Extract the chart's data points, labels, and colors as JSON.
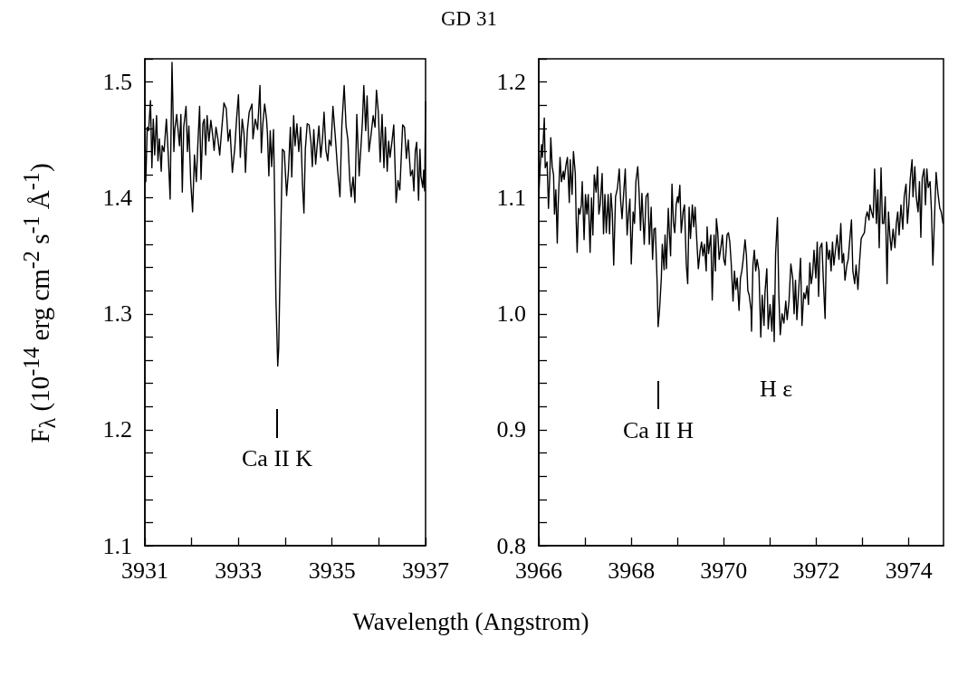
{
  "chart_data": [
    {
      "type": "line",
      "title": "GD 31",
      "xlabel": "Wavelength (Angstrom)",
      "ylabel": "F$_{λ}$ (10$^{-14}$ erg cm$^{-2}$ s$^{-1}$ Å$^{-1}$)",
      "marker": "none",
      "xlim": [
        3931,
        3937
      ],
      "xticks": [
        3931,
        {
          "value": 3932,
          "label": null
        },
        3933,
        {
          "value": 3934,
          "label": null
        },
        3935,
        {
          "value": 3936,
          "label": null
        },
        3937
      ],
      "ylim": [
        1.1,
        1.52
      ],
      "yticks": [
        1.1,
        {
          "value": 1.12,
          "label": null
        },
        {
          "value": 1.14,
          "label": null
        },
        {
          "value": 1.16,
          "label": null
        },
        {
          "value": 1.18,
          "label": null
        },
        1.2,
        {
          "value": 1.22,
          "label": null
        },
        {
          "value": 1.24,
          "label": null
        },
        {
          "value": 1.26,
          "label": null
        },
        {
          "value": 1.28,
          "label": null
        },
        1.3,
        {
          "value": 1.32,
          "label": null
        },
        {
          "value": 1.34,
          "label": null
        },
        {
          "value": 1.36,
          "label": null
        },
        {
          "value": 1.38,
          "label": null
        },
        1.4,
        {
          "value": 1.42,
          "label": null
        },
        {
          "value": 1.44,
          "label": null
        },
        {
          "value": 1.46,
          "label": null
        },
        {
          "value": 1.48,
          "label": null
        },
        1.5,
        {
          "value": 1.52,
          "label": null
        }
      ],
      "annotations": [
        "Ca II K"
      ],
      "series": [
        {
          "color": "#000000",
          "x": [
            3931.02,
            3931.05,
            3931.08,
            3931.12,
            3931.15,
            3931.18,
            3931.21,
            3931.25,
            3931.28,
            3931.31,
            3931.35,
            3931.37,
            3931.41,
            3931.46,
            3931.5,
            3931.54,
            3931.58,
            3931.62,
            3931.64,
            3931.68,
            3931.74,
            3931.77,
            3931.8,
            3931.83,
            3931.88,
            3931.91,
            3931.94,
            3931.98,
            3932.02,
            3932.06,
            3932.1,
            3932.13,
            3932.17,
            3932.2,
            3932.24,
            3932.27,
            3932.3,
            3932.33,
            3932.37,
            3932.41,
            3932.45,
            3932.48,
            3932.52,
            3932.56,
            3932.6,
            3932.63,
            3932.69,
            3932.74,
            3932.78,
            3932.82,
            3932.87,
            3932.92,
            3932.96,
            3933.0,
            3933.04,
            3933.08,
            3933.12,
            3933.15,
            3933.19,
            3933.23,
            3933.29,
            3933.31,
            3933.36,
            3933.41,
            3933.46,
            3933.49,
            3933.52,
            3933.56,
            3933.6,
            3933.62,
            3933.65,
            3933.68,
            3933.71,
            3933.75,
            3933.77,
            3933.8,
            3933.84,
            3933.86,
            3933.9,
            3933.94,
            3933.98,
            3934.03,
            3934.07,
            3934.11,
            3934.14,
            3934.18,
            3934.21,
            3934.25,
            3934.29,
            3934.33,
            3934.37,
            3934.4,
            3934.43,
            3934.47,
            3934.51,
            3934.55,
            3934.58,
            3934.61,
            3934.65,
            3934.68,
            3934.72,
            3934.76,
            3934.8,
            3934.83,
            3934.87,
            3934.91,
            3934.94,
            3934.98,
            3935.02,
            3935.07,
            3935.12,
            3935.17,
            3935.21,
            3935.26,
            3935.3,
            3935.34,
            3935.38,
            3935.41,
            3935.45,
            3935.49,
            3935.53,
            3935.58,
            3935.62,
            3935.65,
            3935.68,
            3935.72,
            3935.75,
            3935.79,
            3935.83,
            3935.88,
            3935.92,
            3935.95,
            3935.99,
            3936.03,
            3936.07,
            3936.11,
            3936.14,
            3936.18,
            3936.21,
            3936.24,
            3936.28,
            3936.32,
            3936.35,
            3936.37,
            3936.41,
            3936.45,
            3936.48,
            3936.51,
            3936.55,
            3936.59,
            3936.63,
            3936.68,
            3936.72,
            3936.75,
            3936.78,
            3936.81,
            3936.85,
            3936.88,
            3936.9,
            3936.94,
            3936.96,
            3936.98,
            3937.0
          ],
          "values": [
            1.414,
            1.461,
            1.458,
            1.484,
            1.426,
            1.468,
            1.437,
            1.471,
            1.432,
            1.451,
            1.423,
            1.445,
            1.44,
            1.468,
            1.437,
            1.399,
            1.517,
            1.44,
            1.459,
            1.472,
            1.445,
            1.472,
            1.405,
            1.461,
            1.479,
            1.44,
            1.462,
            1.414,
            1.388,
            1.437,
            1.414,
            1.444,
            1.479,
            1.416,
            1.464,
            1.468,
            1.437,
            1.471,
            1.449,
            1.467,
            1.454,
            1.441,
            1.461,
            1.451,
            1.437,
            1.453,
            1.482,
            1.477,
            1.449,
            1.459,
            1.422,
            1.442,
            1.468,
            1.489,
            1.435,
            1.468,
            1.455,
            1.422,
            1.458,
            1.474,
            1.481,
            1.451,
            1.468,
            1.459,
            1.497,
            1.439,
            1.463,
            1.481,
            1.468,
            1.455,
            1.419,
            1.458,
            1.427,
            1.459,
            1.411,
            1.315,
            1.255,
            1.27,
            1.359,
            1.442,
            1.44,
            1.402,
            1.424,
            1.461,
            1.418,
            1.471,
            1.445,
            1.464,
            1.44,
            1.461,
            1.411,
            1.387,
            1.442,
            1.464,
            1.463,
            1.448,
            1.427,
            1.459,
            1.429,
            1.444,
            1.462,
            1.435,
            1.453,
            1.474,
            1.441,
            1.432,
            1.45,
            1.445,
            1.479,
            1.453,
            1.424,
            1.401,
            1.462,
            1.497,
            1.462,
            1.45,
            1.415,
            1.401,
            1.418,
            1.396,
            1.472,
            1.419,
            1.445,
            1.466,
            1.497,
            1.458,
            1.488,
            1.44,
            1.453,
            1.471,
            1.461,
            1.493,
            1.474,
            1.431,
            1.472,
            1.426,
            1.461,
            1.423,
            1.449,
            1.435,
            1.448,
            1.463,
            1.424,
            1.396,
            1.415,
            1.407,
            1.435,
            1.463,
            1.461,
            1.434,
            1.45,
            1.419,
            1.424,
            1.406,
            1.44,
            1.448,
            1.398,
            1.442,
            1.419,
            1.409,
            1.424,
            1.406,
            1.483
          ]
        }
      ]
    },
    {
      "type": "line",
      "marker": "none",
      "xlim": [
        3966,
        3974.75
      ],
      "xticks": [
        3966,
        {
          "value": 3967,
          "label": null
        },
        3968,
        {
          "value": 3969,
          "label": null
        },
        3970,
        {
          "value": 3971,
          "label": null
        },
        3972,
        {
          "value": 3973,
          "label": null
        },
        3974
      ],
      "ylim": [
        0.8,
        1.22
      ],
      "yticks": [
        0.8,
        {
          "value": 0.82,
          "label": null
        },
        {
          "value": 0.84,
          "label": null
        },
        {
          "value": 0.86,
          "label": null
        },
        {
          "value": 0.88,
          "label": null
        },
        0.9,
        {
          "value": 0.92,
          "label": null
        },
        {
          "value": 0.94,
          "label": null
        },
        {
          "value": 0.96,
          "label": null
        },
        {
          "value": 0.98,
          "label": null
        },
        {
          "value": 1,
          "label": "1.0"
        },
        {
          "value": 1.02,
          "label": null
        },
        {
          "value": 1.04,
          "label": null
        },
        {
          "value": 1.06,
          "label": null
        },
        {
          "value": 1.08,
          "label": null
        },
        1.1,
        {
          "value": 1.12,
          "label": null
        },
        {
          "value": 1.14,
          "label": null
        },
        {
          "value": 1.16,
          "label": null
        },
        {
          "value": 1.18,
          "label": null
        },
        1.2,
        {
          "value": 1.22,
          "label": null
        }
      ],
      "annotations": [
        "Ca II H",
        "H ε"
      ],
      "series": [
        {
          "color": "#000000",
          "x": [
            3966.0,
            3966.03,
            3966.06,
            3966.08,
            3966.12,
            3966.14,
            3966.18,
            3966.21,
            3966.24,
            3966.26,
            3966.29,
            3966.32,
            3966.34,
            3966.37,
            3966.4,
            3966.42,
            3966.46,
            3966.49,
            3966.53,
            3966.55,
            3966.59,
            3966.62,
            3966.66,
            3966.68,
            3966.72,
            3966.75,
            3966.79,
            3966.81,
            3966.83,
            3966.86,
            3966.89,
            3966.92,
            3966.94,
            3966.98,
            3967.01,
            3967.04,
            3967.07,
            3967.11,
            3967.14,
            3967.17,
            3967.2,
            3967.24,
            3967.27,
            3967.3,
            3967.33,
            3967.37,
            3967.4,
            3967.43,
            3967.46,
            3967.5,
            3967.53,
            3967.56,
            3967.59,
            3967.62,
            3967.66,
            3967.7,
            3967.74,
            3967.77,
            3967.8,
            3967.84,
            3967.87,
            3967.91,
            3967.94,
            3967.97,
            3968.0,
            3968.04,
            3968.07,
            3968.1,
            3968.14,
            3968.17,
            3968.2,
            3968.23,
            3968.28,
            3968.32,
            3968.36,
            3968.39,
            3968.43,
            3968.46,
            3968.49,
            3968.52,
            3968.56,
            3968.58,
            3968.61,
            3968.65,
            3968.67,
            3968.71,
            3968.73,
            3968.76,
            3968.8,
            3968.82,
            3968.85,
            3968.88,
            3968.91,
            3968.94,
            3968.97,
            3969.0,
            3969.02,
            3969.05,
            3969.08,
            3969.12,
            3969.15,
            3969.19,
            3969.22,
            3969.25,
            3969.28,
            3969.32,
            3969.35,
            3969.38,
            3969.41,
            3969.45,
            3969.49,
            3969.52,
            3969.55,
            3969.58,
            3969.62,
            3969.64,
            3969.67,
            3969.72,
            3969.75,
            3969.79,
            3969.82,
            3969.84,
            3969.87,
            3969.9,
            3969.93,
            3969.97,
            3970.0,
            3970.03,
            3970.07,
            3970.1,
            3970.13,
            3970.16,
            3970.2,
            3970.23,
            3970.26,
            3970.29,
            3970.33,
            3970.36,
            3970.39,
            3970.42,
            3970.46,
            3970.49,
            3970.52,
            3970.55,
            3970.59,
            3970.6,
            3970.63,
            3970.66,
            3970.69,
            3970.72,
            3970.76,
            3970.8,
            3970.83,
            3970.87,
            3970.89,
            3970.93,
            3970.96,
            3971.0,
            3971.04,
            3971.07,
            3971.09,
            3971.12,
            3971.16,
            3971.19,
            3971.22,
            3971.26,
            3971.3,
            3971.34,
            3971.37,
            3971.41,
            3971.45,
            3971.49,
            3971.52,
            3971.55,
            3971.58,
            3971.62,
            3971.66,
            3971.69,
            3971.73,
            3971.76,
            3971.8,
            3971.83,
            3971.86,
            3971.89,
            3971.92,
            3971.95,
            3971.99,
            3972.02,
            3972.05,
            3972.08,
            3972.12,
            3972.15,
            3972.19,
            3972.22,
            3972.26,
            3972.29,
            3972.32,
            3972.35,
            3972.38,
            3972.42,
            3972.45,
            3972.49,
            3972.53,
            3972.56,
            3972.59,
            3972.62,
            3972.66,
            3972.69,
            3972.72,
            3972.76,
            3972.79,
            3972.83,
            3972.86,
            3972.9,
            3972.93,
            3972.97,
            3973.01,
            3973.04,
            3973.07,
            3973.1,
            3973.14,
            3973.16,
            3973.2,
            3973.23,
            3973.26,
            3973.3,
            3973.33,
            3973.36,
            3973.4,
            3973.43,
            3973.46,
            3973.49,
            3973.53,
            3973.56,
            3973.59,
            3973.62,
            3973.66,
            3973.7,
            3973.73,
            3973.76,
            3973.79,
            3973.83,
            3973.87,
            3973.9,
            3973.94,
            3973.97,
            3974.0,
            3974.03,
            3974.07,
            3974.09,
            3974.13,
            3974.16,
            3974.2,
            3974.23,
            3974.26,
            3974.29,
            3974.33,
            3974.36,
            3974.39,
            3974.42,
            3974.46,
            3974.49,
            3974.52,
            3974.56,
            3974.59,
            3974.63,
            3974.67,
            3974.7,
            3974.74
          ],
          "values": [
            1.101,
            1.127,
            1.146,
            1.135,
            1.169,
            1.126,
            1.131,
            1.091,
            1.12,
            1.152,
            1.127,
            1.12,
            1.086,
            1.107,
            1.061,
            1.094,
            1.135,
            1.114,
            1.123,
            1.116,
            1.129,
            1.135,
            1.096,
            1.133,
            1.103,
            1.14,
            1.121,
            1.079,
            1.053,
            1.091,
            1.086,
            1.094,
            1.114,
            1.064,
            1.103,
            1.086,
            1.103,
            1.053,
            1.1,
            1.068,
            1.12,
            1.105,
            1.127,
            1.086,
            1.095,
            1.121,
            1.069,
            1.103,
            1.07,
            1.103,
            1.069,
            1.104,
            1.087,
            1.042,
            1.101,
            1.108,
            1.125,
            1.098,
            1.082,
            1.107,
            1.125,
            1.068,
            1.086,
            1.099,
            1.043,
            1.088,
            1.078,
            1.114,
            1.127,
            1.104,
            1.072,
            1.104,
            1.06,
            1.101,
            1.104,
            1.06,
            1.092,
            1.047,
            1.073,
            1.074,
            1.026,
            0.989,
            1.003,
            1.031,
            1.06,
            1.038,
            1.068,
            1.039,
            1.091,
            1.073,
            1.05,
            1.112,
            1.079,
            1.07,
            1.094,
            1.101,
            1.096,
            1.111,
            1.07,
            1.088,
            1.094,
            1.042,
            1.026,
            1.092,
            1.065,
            1.094,
            1.075,
            1.092,
            1.068,
            1.039,
            1.055,
            1.062,
            1.05,
            1.06,
            1.037,
            1.075,
            1.052,
            1.068,
            1.012,
            1.068,
            1.037,
            1.082,
            1.07,
            1.047,
            1.055,
            1.068,
            1.047,
            1.042,
            1.068,
            1.07,
            1.062,
            1.044,
            1.011,
            1.037,
            1.021,
            1.031,
            1.003,
            1.031,
            1.037,
            1.047,
            1.064,
            1.05,
            1.02,
            1.016,
            1.003,
            0.985,
            1.042,
            1.055,
            1.037,
            1.047,
            1.037,
            0.98,
            1.016,
            0.99,
            1.018,
            1.039,
            0.987,
            1.008,
            0.985,
            1.016,
            0.976,
            1.052,
            1.083,
            1.016,
            0.982,
            1.0,
            0.992,
            1.011,
            0.995,
            1.011,
            1.043,
            1.031,
            1.0,
            1.029,
            0.995,
            1.021,
            1.048,
            0.99,
            1.018,
            1.013,
            1.024,
            1.008,
            1.044,
            1.026,
            1.034,
            1.055,
            1.031,
            1.062,
            1.015,
            1.057,
            1.061,
            1.031,
            0.996,
            1.062,
            1.047,
            1.055,
            1.037,
            1.062,
            1.042,
            1.057,
            1.068,
            1.047,
            1.078,
            1.044,
            1.052,
            1.029,
            1.042,
            1.047,
            1.062,
            1.081,
            1.037,
            1.026,
            1.042,
            1.021,
            1.042,
            1.065,
            1.068,
            1.07,
            1.083,
            1.088,
            1.081,
            1.094,
            1.087,
            1.083,
            1.125,
            1.078,
            1.107,
            1.057,
            1.126,
            1.078,
            1.078,
            1.101,
            1.026,
            1.088,
            1.068,
            1.055,
            1.073,
            1.057,
            1.078,
            1.088,
            1.068,
            1.094,
            1.073,
            1.101,
            1.112,
            1.078,
            1.094,
            1.116,
            1.133,
            1.101,
            1.127,
            1.101,
            1.088,
            1.114,
            1.066,
            1.117,
            1.125,
            1.094,
            1.125,
            1.109,
            1.114,
            1.088,
            1.042,
            1.088,
            1.122,
            1.104,
            1.091,
            1.088,
            1.078
          ]
        }
      ]
    }
  ]
}
